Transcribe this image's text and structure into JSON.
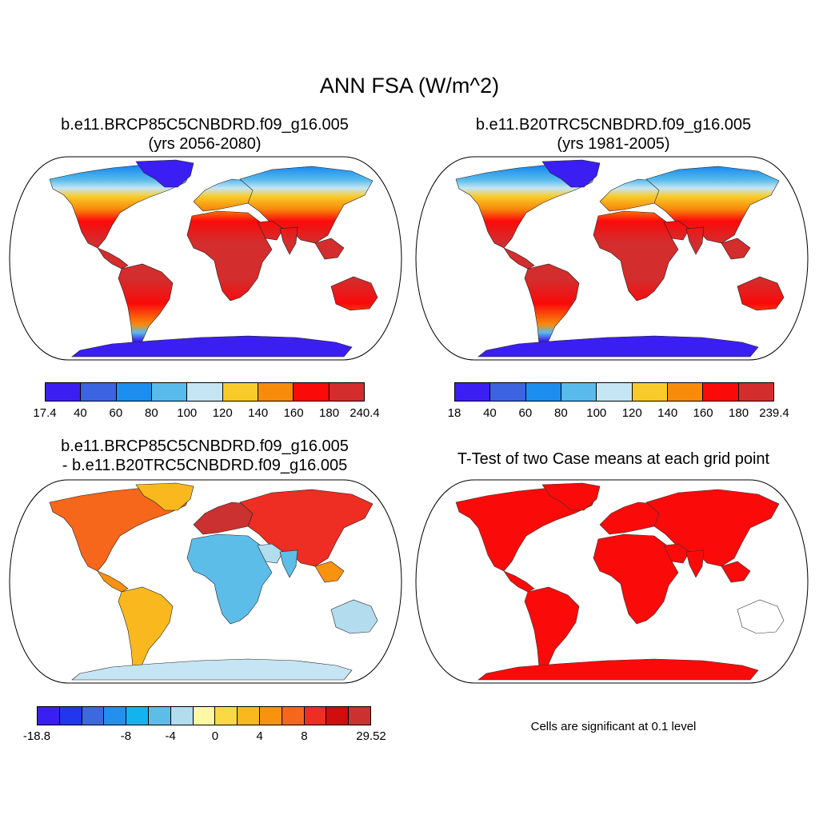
{
  "figure": {
    "title": "ANN FSA (W/m^2)"
  },
  "panels": [
    {
      "title_line1": "b.e11.BRCP85C5CNBDRD.f09_g16.005",
      "title_line2": "(yrs 2056-2080)",
      "colorbar": {
        "colors": [
          "#3b1ff2",
          "#3c63e0",
          "#1b8ef0",
          "#59bbec",
          "#c6e5f4",
          "#f9cb2a",
          "#f98b0a",
          "#fb0a0a",
          "#d32d2d"
        ],
        "labels": [
          "17.4",
          "40",
          "60",
          "80",
          "100",
          "120",
          "140",
          "160",
          "180",
          "240.4"
        ]
      }
    },
    {
      "title_line1": "b.e11.B20TRC5CNBDRD.f09_g16.005",
      "title_line2": "(yrs 1981-2005)",
      "colorbar": {
        "colors": [
          "#3b1ff2",
          "#3c63e0",
          "#1b8ef0",
          "#59bbec",
          "#c6e5f4",
          "#f9cb2a",
          "#f98b0a",
          "#fb0a0a",
          "#d32d2d"
        ],
        "labels": [
          "18",
          "40",
          "60",
          "80",
          "100",
          "120",
          "140",
          "160",
          "180",
          "239.4"
        ]
      }
    },
    {
      "title_line1": "b.e11.BRCP85C5CNBDRD.f09_g16.005",
      "title_line2": "- b.e11.B20TRC5CNBDRD.f09_g16.005",
      "colorbar": {
        "colors": [
          "#3b1ff2",
          "#2236f0",
          "#3d69e0",
          "#2390ef",
          "#14b3f0",
          "#5cbde9",
          "#b3dcef",
          "#fdf8a4",
          "#fbd946",
          "#f9b81e",
          "#f9920f",
          "#f6661b",
          "#ee2d23",
          "#d10d0d",
          "#cb3131"
        ],
        "labels": [
          "-18.8",
          "-8",
          "-4",
          "0",
          "4",
          "8",
          "29.52"
        ]
      }
    },
    {
      "title_line1": "T-Test of two Case means at each grid point",
      "note": "Cells are significant at 0.1 level"
    }
  ]
}
